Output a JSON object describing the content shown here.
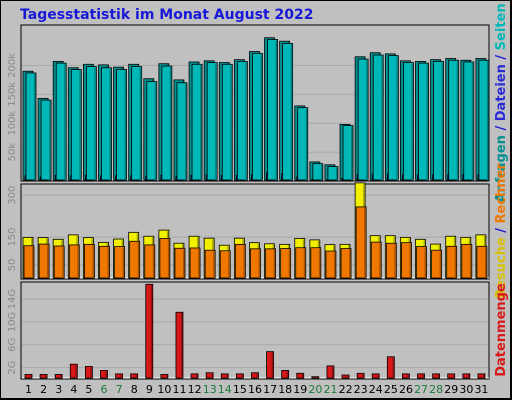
{
  "title": "Tagesstatistik im Monat August 2022",
  "colors": {
    "background": "#c0c0c0",
    "title": "#1818d8",
    "anfragen": "#009090",
    "dateien": "#2a2ad8",
    "seiten": "#00b8b8",
    "besuche": "#f0f000",
    "rechner": "#f07800",
    "datenmenge": "#d81818",
    "weekend_day": "#1d7a3a"
  },
  "right_labels": {
    "top": [
      {
        "text": "Anfragen",
        "color": "#009090"
      },
      {
        "text": " / ",
        "color": "#1818d8"
      },
      {
        "text": "Dateien",
        "color": "#2a2ad8"
      },
      {
        "text": " / ",
        "color": "#1818d8"
      },
      {
        "text": "Seiten",
        "color": "#00b8b8"
      }
    ],
    "middle": [
      {
        "text": "Besuche",
        "color": "#d8c000"
      },
      {
        "text": " / ",
        "color": "#1818d8"
      },
      {
        "text": "Rechner",
        "color": "#f07800"
      }
    ],
    "bottom": [
      {
        "text": "Datenmenge",
        "color": "#d81818"
      }
    ]
  },
  "chart_data": {
    "type": "bar",
    "title": "Tagesstatistik im Monat August 2022",
    "categories": [
      "1",
      "2",
      "3",
      "4",
      "5",
      "6",
      "7",
      "8",
      "9",
      "10",
      "11",
      "12",
      "13",
      "14",
      "15",
      "16",
      "17",
      "18",
      "19",
      "20",
      "21",
      "22",
      "23",
      "24",
      "25",
      "26",
      "27",
      "28",
      "29",
      "30",
      "31"
    ],
    "weekend_days": [
      "6",
      "7",
      "13",
      "14",
      "20",
      "21",
      "27",
      "28"
    ],
    "panels": [
      {
        "id": "top",
        "ylim": [
          0,
          270000
        ],
        "ticks": [
          {
            "value": 50000,
            "label": "50k"
          },
          {
            "value": 100000,
            "label": "100k"
          },
          {
            "value": 150000,
            "label": "150k"
          },
          {
            "value": 200000,
            "label": "200k"
          }
        ],
        "grid": true,
        "series": [
          {
            "name": "Anfragen",
            "color": "#009090",
            "values": [
              190000,
              143000,
              207000,
              196000,
              202000,
              201000,
              197000,
              202000,
              177000,
              203000,
              175000,
              206000,
              208000,
              205000,
              210000,
              224000,
              248000,
              242000,
              130000,
              33000,
              28000,
              98000,
              215000,
              222000,
              220000,
              208000,
              207000,
              210000,
              212000,
              209000,
              212000
            ]
          },
          {
            "name": "Dateien",
            "color": "#2a2ad8",
            "values": [
              9000,
              7000,
              10000,
              9000,
              10000,
              9000,
              9000,
              9000,
              8000,
              10000,
              8000,
              10000,
              11000,
              10000,
              10000,
              11000,
              14000,
              13000,
              7000,
              3000,
              2000,
              5000,
              11000,
              12000,
              12000,
              11000,
              11000,
              11000,
              11000,
              11000,
              11000
            ]
          },
          {
            "name": "Seiten",
            "color": "#00b8b8",
            "values": [
              187000,
              140000,
              204000,
              193000,
              198000,
              196000,
              193000,
              198000,
              172000,
              199000,
              170000,
              202000,
              205000,
              202000,
              207000,
              221000,
              245000,
              238000,
              127000,
              30000,
              25000,
              96000,
              211000,
              218000,
              217000,
              205000,
              204000,
              207000,
              209000,
              206000,
              209000
            ]
          }
        ]
      },
      {
        "id": "middle",
        "ylim": [
          0,
          340
        ],
        "ticks": [
          {
            "value": 50,
            "label": "50"
          },
          {
            "value": 150,
            "label": "150"
          },
          {
            "value": 300,
            "label": "300"
          }
        ],
        "grid": true,
        "series": [
          {
            "name": "Besuche",
            "color": "#f0f000",
            "values": [
              149,
              148,
              142,
              158,
              148,
              131,
              143,
              167,
              153,
              175,
              128,
              153,
              146,
              121,
              146,
              130,
              126,
              124,
              145,
              140,
              123,
              124,
              344,
              155,
              155,
              149,
              142,
              125,
              153,
              149,
              158
            ]
          },
          {
            "name": "Rechner",
            "color": "#f07800",
            "values": [
              119,
              125,
              118,
              122,
              124,
              117,
              116,
              135,
              122,
              145,
              110,
              111,
              103,
              101,
              124,
              108,
              108,
              109,
              112,
              112,
              100,
              109,
              258,
              132,
              128,
              130,
              116,
              103,
              117,
              124,
              117
            ]
          }
        ]
      },
      {
        "id": "bottom",
        "ylim": [
          0,
          17
        ],
        "unit": "GB",
        "ticks": [
          {
            "value": 2,
            "label": "2G"
          },
          {
            "value": 6,
            "label": "6G"
          },
          {
            "value": 10,
            "label": "10G"
          },
          {
            "value": 14,
            "label": "14G"
          }
        ],
        "grid": true,
        "series": [
          {
            "name": "Datenmenge",
            "color": "#d81818",
            "values": [
              0.8,
              0.8,
              0.8,
              2.6,
              2.2,
              1.5,
              0.9,
              0.9,
              16.6,
              0.8,
              11.7,
              0.9,
              1.1,
              0.9,
              0.9,
              1.1,
              4.8,
              1.5,
              1.0,
              0.4,
              2.3,
              0.7,
              1.0,
              0.9,
              3.9,
              0.9,
              0.9,
              0.9,
              0.9,
              0.9,
              0.9
            ]
          }
        ]
      }
    ]
  }
}
